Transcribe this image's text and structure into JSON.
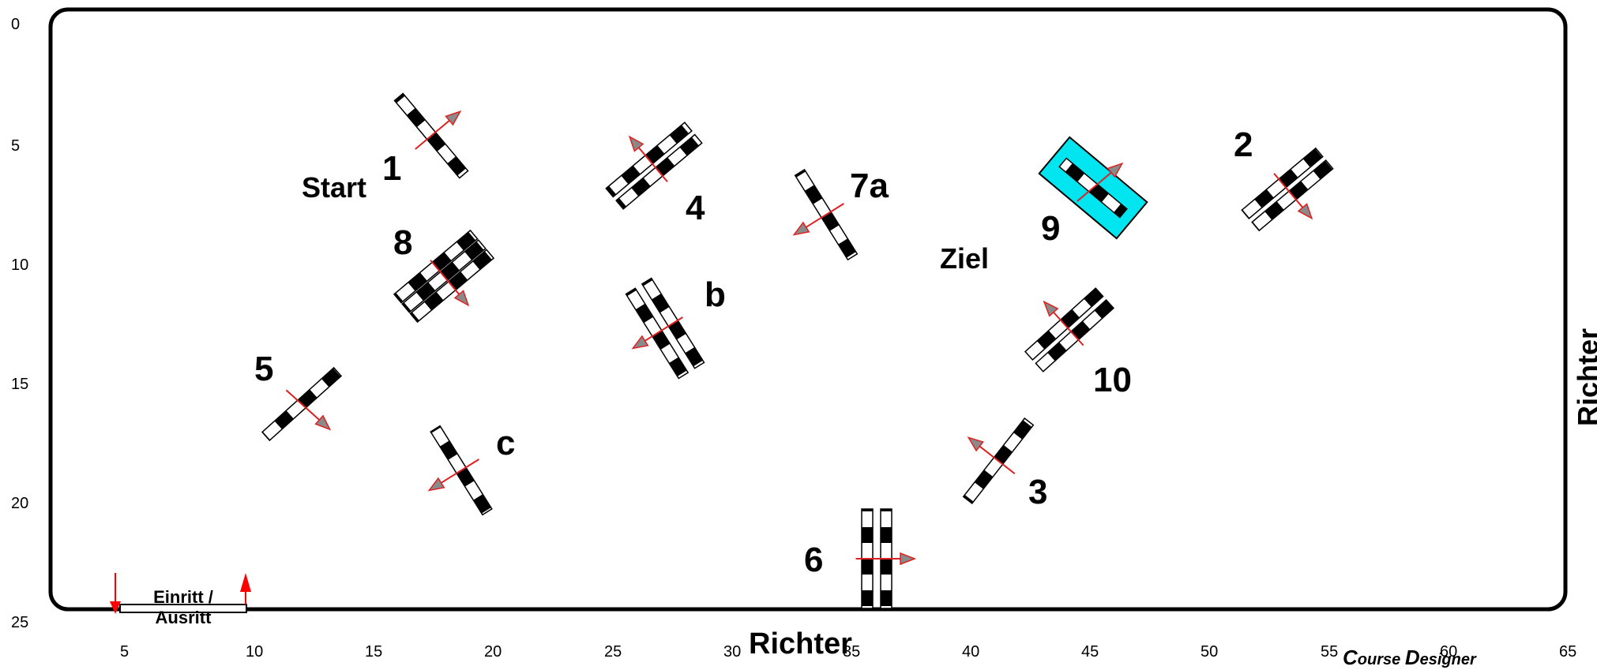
{
  "y_ticks": [
    "0",
    "5",
    "10",
    "15",
    "20",
    "25"
  ],
  "x_ticks": [
    "5",
    "10",
    "15",
    "20",
    "25",
    "30",
    "35",
    "40",
    "45",
    "50",
    "55",
    "60",
    "65"
  ],
  "labels": {
    "start": "Start",
    "ziel": "Ziel",
    "entry_line1": "Einritt /",
    "entry_line2": "Ausritt",
    "judge_bottom": "Richter",
    "judge_right": "Richter",
    "designer_c": "C",
    "designer_ourse": "ourse ",
    "designer_d": "D",
    "designer_esigner": "esigner"
  },
  "obstacle_numbers": [
    "1",
    "2",
    "3",
    "4",
    "5",
    "6",
    "7a",
    "8",
    "9",
    "10",
    "b",
    "c"
  ],
  "colors": {
    "rail_dark": "#000000",
    "rail_light": "#ffffff",
    "arrow": "#e02020",
    "arrowhead_fill": "#8a8a8a",
    "water": "#00e5f0",
    "arena_border": "#000000",
    "entry_arrow": "#ff0000"
  },
  "obstacles": [
    {
      "id": "1",
      "type": "vertical",
      "arrow": "up-right"
    },
    {
      "id": "2",
      "type": "oxer",
      "arrow": "down-right"
    },
    {
      "id": "3",
      "type": "vertical",
      "arrow": "up-left"
    },
    {
      "id": "4",
      "type": "oxer",
      "arrow": "up-left"
    },
    {
      "id": "5",
      "type": "vertical",
      "arrow": "down-right"
    },
    {
      "id": "6",
      "type": "oxer",
      "arrow": "right"
    },
    {
      "id": "7a",
      "type": "vertical",
      "arrow": "down-left"
    },
    {
      "id": "8",
      "type": "triple-bar",
      "arrow": "down-right"
    },
    {
      "id": "9",
      "type": "water-jump",
      "arrow": "up-right"
    },
    {
      "id": "10",
      "type": "oxer",
      "arrow": "up-left"
    },
    {
      "id": "b",
      "type": "oxer",
      "arrow": "down-left"
    },
    {
      "id": "c",
      "type": "vertical",
      "arrow": "down-left"
    }
  ]
}
